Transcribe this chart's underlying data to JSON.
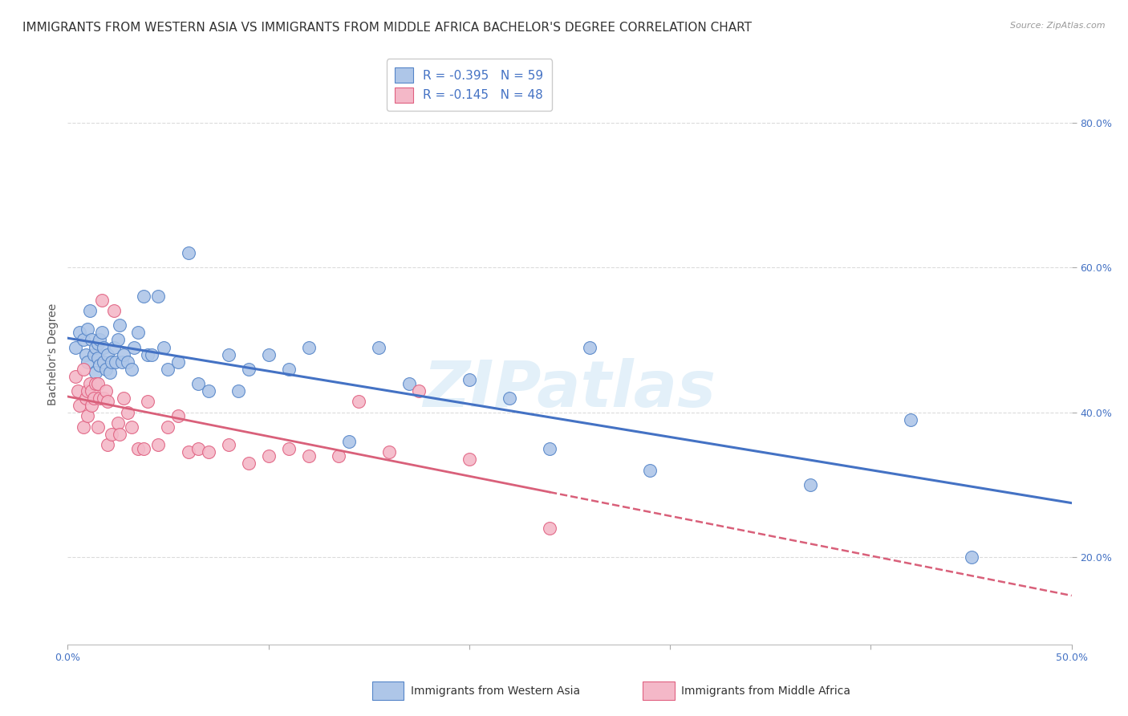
{
  "title": "IMMIGRANTS FROM WESTERN ASIA VS IMMIGRANTS FROM MIDDLE AFRICA BACHELOR'S DEGREE CORRELATION CHART",
  "source": "Source: ZipAtlas.com",
  "ylabel_label": "Bachelor's Degree",
  "watermark": "ZIPatlas",
  "xlim": [
    0.0,
    0.5
  ],
  "ylim": [
    0.08,
    0.88
  ],
  "x_tick_positions": [
    0.0,
    0.1,
    0.2,
    0.3,
    0.4,
    0.5
  ],
  "x_tick_labels": [
    "0.0%",
    "",
    "",
    "",
    "",
    "50.0%"
  ],
  "y_tick_positions": [
    0.2,
    0.4,
    0.6,
    0.8
  ],
  "y_tick_labels": [
    "20.0%",
    "40.0%",
    "60.0%",
    "80.0%"
  ],
  "R_blue": -0.395,
  "N_blue": 59,
  "R_pink": -0.145,
  "N_pink": 48,
  "color_blue": "#aec6e8",
  "color_pink": "#f4b8c8",
  "edge_blue": "#5585c8",
  "edge_pink": "#e06080",
  "line_blue_color": "#4472c4",
  "line_pink_color": "#d9607a",
  "scatter_blue_x": [
    0.004,
    0.006,
    0.008,
    0.009,
    0.01,
    0.01,
    0.011,
    0.012,
    0.013,
    0.014,
    0.014,
    0.015,
    0.015,
    0.016,
    0.016,
    0.017,
    0.018,
    0.018,
    0.019,
    0.02,
    0.021,
    0.022,
    0.023,
    0.024,
    0.025,
    0.026,
    0.027,
    0.028,
    0.03,
    0.032,
    0.033,
    0.035,
    0.038,
    0.04,
    0.042,
    0.045,
    0.048,
    0.05,
    0.055,
    0.06,
    0.065,
    0.07,
    0.08,
    0.085,
    0.09,
    0.1,
    0.11,
    0.12,
    0.14,
    0.155,
    0.17,
    0.2,
    0.22,
    0.24,
    0.26,
    0.29,
    0.37,
    0.42,
    0.45
  ],
  "scatter_blue_y": [
    0.49,
    0.51,
    0.5,
    0.48,
    0.515,
    0.47,
    0.54,
    0.5,
    0.48,
    0.49,
    0.455,
    0.475,
    0.495,
    0.5,
    0.465,
    0.51,
    0.47,
    0.49,
    0.46,
    0.48,
    0.455,
    0.47,
    0.49,
    0.47,
    0.5,
    0.52,
    0.47,
    0.48,
    0.47,
    0.46,
    0.49,
    0.51,
    0.56,
    0.48,
    0.48,
    0.56,
    0.49,
    0.46,
    0.47,
    0.62,
    0.44,
    0.43,
    0.48,
    0.43,
    0.46,
    0.48,
    0.46,
    0.49,
    0.36,
    0.49,
    0.44,
    0.445,
    0.42,
    0.35,
    0.49,
    0.32,
    0.3,
    0.39,
    0.2
  ],
  "scatter_pink_x": [
    0.004,
    0.005,
    0.006,
    0.008,
    0.008,
    0.009,
    0.01,
    0.01,
    0.011,
    0.012,
    0.012,
    0.013,
    0.014,
    0.015,
    0.015,
    0.016,
    0.017,
    0.018,
    0.019,
    0.02,
    0.02,
    0.022,
    0.023,
    0.025,
    0.026,
    0.028,
    0.03,
    0.032,
    0.035,
    0.038,
    0.04,
    0.045,
    0.05,
    0.055,
    0.06,
    0.065,
    0.07,
    0.08,
    0.09,
    0.1,
    0.11,
    0.12,
    0.135,
    0.145,
    0.16,
    0.175,
    0.2,
    0.24
  ],
  "scatter_pink_y": [
    0.45,
    0.43,
    0.41,
    0.46,
    0.38,
    0.42,
    0.43,
    0.395,
    0.44,
    0.43,
    0.41,
    0.42,
    0.44,
    0.44,
    0.38,
    0.42,
    0.555,
    0.42,
    0.43,
    0.415,
    0.355,
    0.37,
    0.54,
    0.385,
    0.37,
    0.42,
    0.4,
    0.38,
    0.35,
    0.35,
    0.415,
    0.355,
    0.38,
    0.395,
    0.345,
    0.35,
    0.345,
    0.355,
    0.33,
    0.34,
    0.35,
    0.34,
    0.34,
    0.415,
    0.345,
    0.43,
    0.335,
    0.24
  ],
  "bg_color": "#ffffff",
  "grid_color": "#d8d8d8",
  "title_fontsize": 11,
  "axis_label_fontsize": 10,
  "tick_fontsize": 9,
  "legend_fontsize": 11,
  "bottom_legend_label1": "Immigrants from Western Asia",
  "bottom_legend_label2": "Immigrants from Middle Africa"
}
